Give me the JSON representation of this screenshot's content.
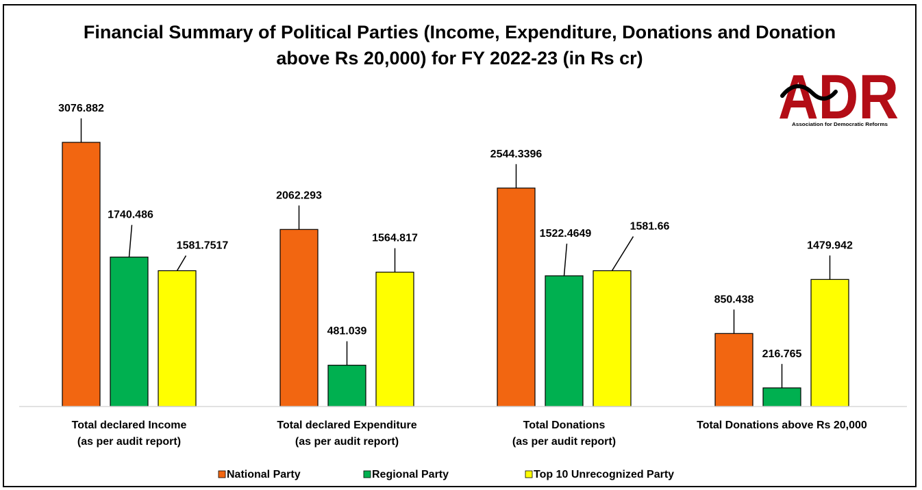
{
  "chart_data": {
    "type": "bar",
    "title": "Financial Summary of Political Parties (Income, Expenditure, Donations and Donation above Rs 20,000) for FY 2022-23 (in Rs cr)",
    "title_lines": [
      "Financial Summary of Political Parties (Income, Expenditure, Donations and Donation",
      "above Rs 20,000) for FY 2022-23 (in Rs cr)"
    ],
    "categories": [
      [
        "Total declared Income",
        "(as per audit report)"
      ],
      [
        "Total declared Expenditure",
        "(as per audit report)"
      ],
      [
        "Total Donations",
        "(as per audit report)"
      ],
      [
        "Total Donations above Rs 20,000"
      ]
    ],
    "series": [
      {
        "name": "National Party",
        "color": "#f26611",
        "values": [
          3076.882,
          2062.293,
          2544.3396,
          850.438
        ],
        "labels": [
          "3076.882",
          "2062.293",
          "2544.3396",
          "850.438"
        ]
      },
      {
        "name": "Regional Party",
        "color": "#00b050",
        "values": [
          1740.486,
          481.039,
          1522.4649,
          216.765
        ],
        "labels": [
          "1740.486",
          "481.039",
          "1522.4649",
          "216.765"
        ]
      },
      {
        "name": "Top 10 Unrecognized Party",
        "color": "#ffff00",
        "values": [
          1581.7517,
          1564.817,
          1581.66,
          1479.942
        ],
        "labels": [
          "1581.7517",
          "1564.817",
          "1581.66",
          "1479.942"
        ]
      }
    ],
    "ylim": [
      0,
      3076.882
    ],
    "grid": false,
    "legend_position": "bottom",
    "xlabel": "",
    "ylabel": ""
  },
  "logo": {
    "text": "ADR",
    "subtitle": "Association for Democratic Reforms",
    "color": "#b30d16"
  }
}
